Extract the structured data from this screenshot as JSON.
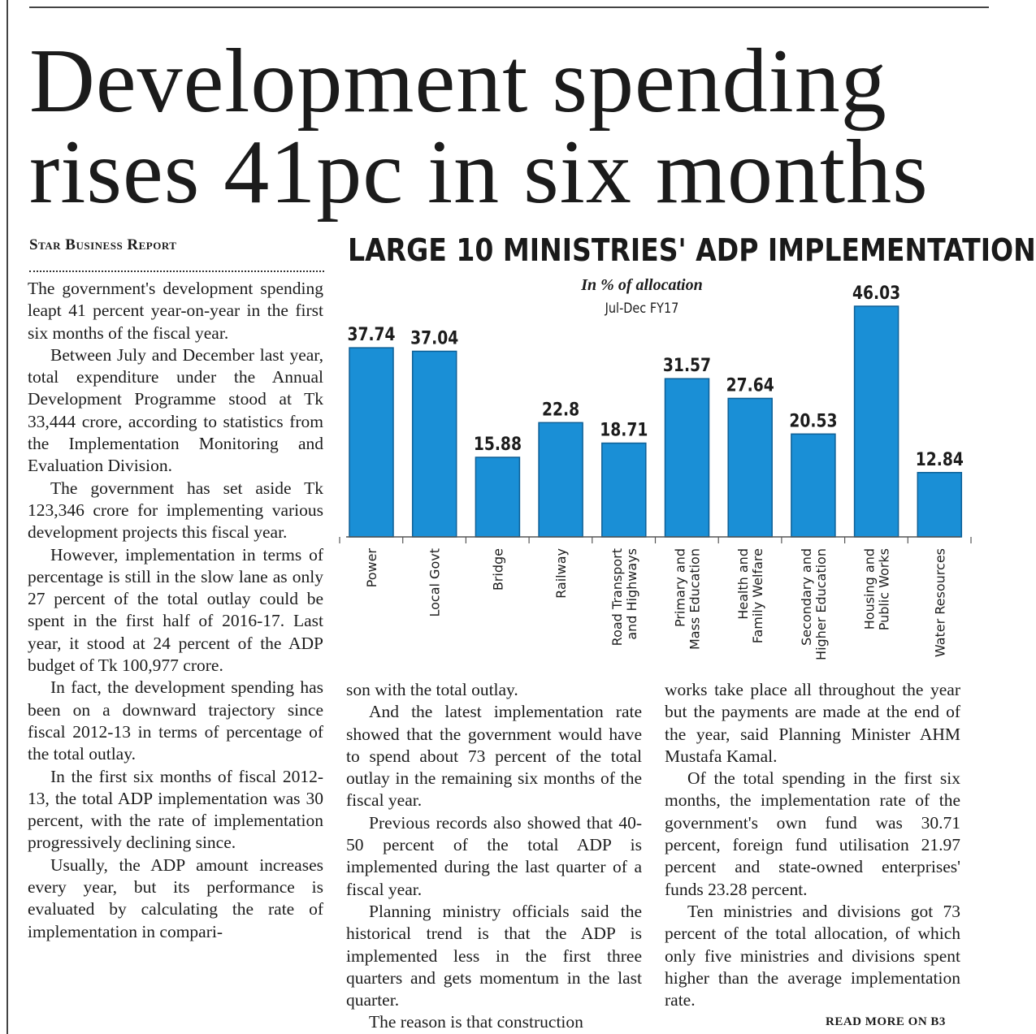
{
  "headline": {
    "line1": "Development spending",
    "line2": "rises 41pc in six months"
  },
  "byline": "Star Business Report",
  "columns": {
    "col1": [
      "The government's development spending leapt 41 percent year-on-year in the first six months of the fiscal year.",
      "Between July and December last year, total expenditure under the Annual Development Programme stood at Tk 33,444 crore, according to statistics from the Implementation Monitoring and Evaluation Division.",
      "The government has set aside Tk 123,346 crore for implementing various development projects this fiscal year.",
      "However, implementation in terms of percentage is still in the slow lane as only 27 percent of the total outlay could be spent in the first half of 2016-17. Last year, it stood at 24 percent of the ADP budget of Tk 100,977 crore.",
      "In fact, the development spending has been on a downward trajectory since fiscal 2012-13 in terms of percentage of the total outlay.",
      "In the first six months of fiscal 2012-13, the total ADP implementation was 30 percent, with the rate of implementation progressively declining since.",
      "Usually, the ADP amount increases every year, but its performance is evaluated by calculating the rate of implementation in compari-"
    ],
    "col2": [
      "son with the total outlay.",
      "And the latest implementation rate showed that the government would have to spend about 73 percent of the total outlay in the remaining six months of the fiscal year.",
      "Previous records also showed that 40-50 percent of the total ADP is implemented during the last quarter of a fiscal year.",
      "Planning ministry officials said the historical trend is that the ADP is implemented less in the first three quarters and gets momentum in the last quarter.",
      "The reason is that construction"
    ],
    "col3": [
      "works take place all throughout the year but the payments are made at the end of the year, said Planning Minister AHM Mustafa Kamal.",
      "Of the total spending in the first six months, the implementation rate of the government's own fund was 30.71 percent, foreign fund utilisation 21.97 percent and state-owned enterprises' funds 23.28 percent.",
      "Ten ministries and divisions got 73 percent of the total allocation, of which only five ministries and divisions spent higher than the average implementation rate."
    ]
  },
  "read_more": "READ MORE ON B3",
  "colors": {
    "bar": "#1a8fd6",
    "bar_stroke": "#0d5f96",
    "text": "#1c1c1c"
  },
  "chart_data": {
    "type": "bar",
    "title": "LARGE 10 MINISTRIES' ADP IMPLEMENTATION",
    "subtitle": "In % of allocation",
    "period": "Jul-Dec FY17",
    "categories": [
      [
        "Power"
      ],
      [
        "Local Govt"
      ],
      [
        "Bridge"
      ],
      [
        "Railway"
      ],
      [
        "Road Transport",
        "and Highways"
      ],
      [
        "Primary and",
        "Mass Education"
      ],
      [
        "Health and",
        "Family Welfare"
      ],
      [
        "Secondary and",
        "Higher Education"
      ],
      [
        "Housing and",
        "Public Works"
      ],
      [
        "Water Resources"
      ]
    ],
    "values": [
      37.74,
      37.04,
      15.88,
      22.8,
      18.71,
      31.57,
      27.64,
      20.53,
      46.03,
      12.84
    ],
    "value_labels": [
      "37.74",
      "37.04",
      "15.88",
      "22.8",
      "18.71",
      "31.57",
      "27.64",
      "20.53",
      "46.03",
      "12.84"
    ],
    "xlabel": "",
    "ylabel": "",
    "ylim": [
      0,
      46.03
    ]
  }
}
